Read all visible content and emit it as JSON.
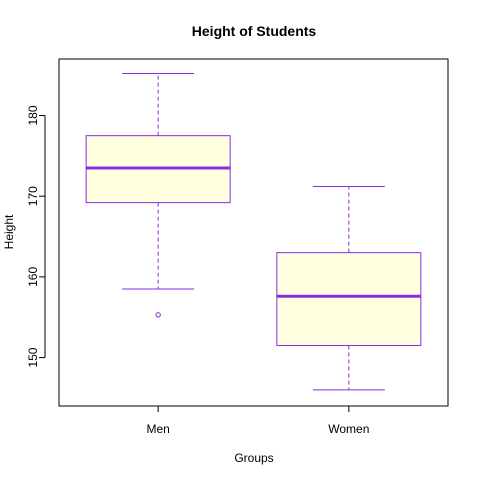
{
  "chart_data": {
    "type": "boxplot",
    "title": "Height of Students",
    "xlabel": "Groups",
    "ylabel": "Height",
    "ylim": [
      144,
      187
    ],
    "yticks": [
      150,
      160,
      170,
      180
    ],
    "grid": false,
    "legend": "none",
    "colors": {
      "box_fill": "#FFFFE0",
      "box_border": "#8A2BE2",
      "median": "#8A2BE2",
      "whisker": "#8A2BE2",
      "frame": "#000000"
    },
    "categories": [
      "Men",
      "Women"
    ],
    "boxes": [
      {
        "label": "Men",
        "min": 158.5,
        "q1": 169.2,
        "median": 173.5,
        "q3": 177.5,
        "max": 185.2,
        "outliers": [
          155.3
        ]
      },
      {
        "label": "Women",
        "min": 146.0,
        "q1": 151.5,
        "median": 157.6,
        "q3": 163.0,
        "max": 171.2,
        "outliers": []
      }
    ]
  }
}
